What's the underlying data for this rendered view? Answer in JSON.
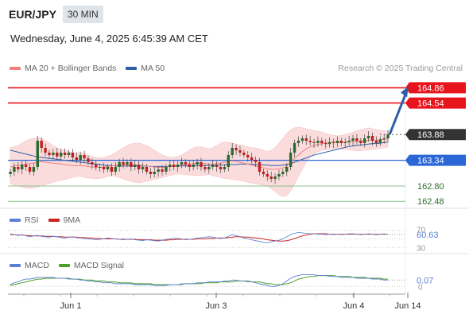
{
  "header": {
    "pair": "EUR/JPY",
    "timeframe": "30 MIN",
    "datetime": "Wednesday, June 4, 2025 6:45:39 AM CET",
    "credit": "Research © 2025 Trading Central"
  },
  "legend": {
    "ma20": "MA 20 + Bollinger Bands",
    "ma50": "MA 50"
  },
  "rsi_legend": {
    "rsi": "RSI",
    "ma9": "9MA"
  },
  "macd_legend": {
    "macd": "MACD",
    "signal": "MACD Signal"
  },
  "colors": {
    "resistance": "#e8141c",
    "support": "#2a66d6",
    "support_minor": "#8bc28b",
    "bollinger": "#fbdcdc",
    "ma20": "#f08080",
    "ma50": "#2d5fa8",
    "bull": "#2d6a2d",
    "bear": "#c02020",
    "rsi": "#5a7fd6",
    "rsi_ma": "#cc2222",
    "macd": "#5a7fd6",
    "macd_signal": "#4aa02a",
    "arrow": "#2d5fa8"
  },
  "chart_data": [
    {
      "type": "candlestick",
      "title": "EUR/JPY",
      "x_labels": [
        "Jun 1",
        "Jun 3",
        "Jun 4",
        "Jun 14"
      ],
      "ylim": [
        162.4,
        165.1
      ],
      "levels": [
        {
          "name": "resistance-2",
          "value": 164.86,
          "label": "164.86",
          "style": "resistance"
        },
        {
          "name": "resistance-1",
          "value": 164.54,
          "label": "164.54",
          "style": "resistance"
        },
        {
          "name": "current-price",
          "value": 163.88,
          "label": "163.88",
          "style": "current"
        },
        {
          "name": "support-1",
          "value": 163.34,
          "label": "163.34",
          "style": "support"
        },
        {
          "name": "support-2",
          "value": 162.8,
          "label": "162.80",
          "style": "minor"
        },
        {
          "name": "support-3",
          "value": 162.48,
          "label": "162.48",
          "style": "minor"
        }
      ],
      "closes": [
        163.1,
        163.2,
        163.15,
        163.25,
        163.2,
        163.1,
        163.2,
        163.75,
        163.6,
        163.5,
        163.45,
        163.5,
        163.42,
        163.5,
        163.45,
        163.5,
        163.4,
        163.35,
        163.45,
        163.38,
        163.3,
        163.25,
        163.2,
        163.2,
        163.15,
        163.2,
        163.1,
        163.2,
        163.3,
        163.25,
        163.3,
        163.2,
        163.25,
        163.15,
        163.2,
        163.1,
        163.05,
        163.1,
        163.15,
        163.1,
        163.2,
        163.25,
        163.2,
        163.25,
        163.3,
        163.25,
        163.2,
        163.25,
        163.3,
        163.2,
        163.15,
        163.2,
        163.25,
        163.2,
        163.15,
        163.2,
        163.45,
        163.6,
        163.55,
        163.5,
        163.45,
        163.4,
        163.35,
        163.3,
        163.1,
        163.05,
        163.0,
        162.95,
        163.0,
        163.05,
        163.1,
        163.2,
        163.5,
        163.7,
        163.75,
        163.8,
        163.75,
        163.72,
        163.7,
        163.75,
        163.7,
        163.68,
        163.72,
        163.7,
        163.75,
        163.7,
        163.72,
        163.75,
        163.8,
        163.75,
        163.7,
        163.8,
        163.85,
        163.75,
        163.7,
        163.78,
        163.8,
        163.88
      ],
      "bollinger_upper": [
        163.6,
        163.62,
        163.65,
        163.7,
        163.75,
        163.78,
        163.8,
        163.82,
        163.8,
        163.75,
        163.7,
        163.65,
        163.6,
        163.58,
        163.55,
        163.52,
        163.5,
        163.5,
        163.5,
        163.48,
        163.45,
        163.42,
        163.4,
        163.4,
        163.4,
        163.42,
        163.45,
        163.5,
        163.55,
        163.6,
        163.65,
        163.68,
        163.7,
        163.7,
        163.68,
        163.65,
        163.6,
        163.55,
        163.5,
        163.45,
        163.42,
        163.4,
        163.4,
        163.42,
        163.45,
        163.5,
        163.55,
        163.6,
        163.62,
        163.62,
        163.6,
        163.58,
        163.6,
        163.65,
        163.7,
        163.72,
        163.72,
        163.7,
        163.68,
        163.66,
        163.65,
        163.62,
        163.6,
        163.6,
        163.58,
        163.55,
        163.52,
        163.55,
        163.6,
        163.7,
        163.8,
        163.9,
        163.98,
        164.02,
        164.03,
        164.02,
        164.0,
        163.98,
        163.96,
        163.95,
        163.93,
        163.9,
        163.88,
        163.86,
        163.85,
        163.86,
        163.88,
        163.9,
        163.93,
        163.96,
        163.98,
        164.0,
        164.02,
        164.0,
        163.98,
        163.97,
        163.96,
        163.95
      ],
      "bollinger_lower": [
        162.85,
        162.82,
        162.8,
        162.78,
        162.76,
        162.75,
        162.76,
        162.78,
        162.8,
        162.83,
        162.85,
        162.88,
        162.9,
        162.92,
        162.94,
        162.96,
        162.98,
        163.0,
        163.0,
        162.98,
        162.97,
        162.96,
        162.95,
        162.96,
        162.98,
        163.0,
        163.02,
        163.0,
        162.98,
        162.95,
        162.92,
        162.9,
        162.88,
        162.87,
        162.88,
        162.9,
        162.92,
        162.94,
        162.96,
        162.98,
        163.0,
        163.02,
        163.04,
        163.05,
        163.05,
        163.04,
        163.03,
        163.02,
        163.02,
        163.02,
        163.03,
        163.04,
        163.02,
        163.0,
        162.98,
        162.96,
        162.95,
        162.94,
        162.93,
        162.92,
        162.9,
        162.88,
        162.86,
        162.85,
        162.83,
        162.82,
        162.8,
        162.75,
        162.68,
        162.62,
        162.58,
        162.6,
        162.7,
        162.85,
        163.0,
        163.15,
        163.3,
        163.4,
        163.48,
        163.52,
        163.55,
        163.56,
        163.57,
        163.58,
        163.58,
        163.58,
        163.57,
        163.56,
        163.55,
        163.54,
        163.54,
        163.55,
        163.56,
        163.57,
        163.58,
        163.59,
        163.6,
        163.62
      ],
      "ma20": [
        163.2,
        163.22,
        163.23,
        163.24,
        163.26,
        163.27,
        163.28,
        163.3,
        163.31,
        163.3,
        163.29,
        163.28,
        163.27,
        163.26,
        163.25,
        163.24,
        163.23,
        163.23,
        163.23,
        163.22,
        163.21,
        163.2,
        163.19,
        163.19,
        163.2,
        163.21,
        163.22,
        163.23,
        163.24,
        163.24,
        163.24,
        163.24,
        163.24,
        163.23,
        163.23,
        163.22,
        163.21,
        163.2,
        163.19,
        163.19,
        163.2,
        163.21,
        163.22,
        163.23,
        163.24,
        163.25,
        163.26,
        163.27,
        163.28,
        163.28,
        163.27,
        163.26,
        163.26,
        163.27,
        163.28,
        163.3,
        163.32,
        163.33,
        163.32,
        163.3,
        163.28,
        163.26,
        163.24,
        163.22,
        163.2,
        163.18,
        163.16,
        163.15,
        163.15,
        163.16,
        163.18,
        163.22,
        163.3,
        163.38,
        163.45,
        163.52,
        163.58,
        163.62,
        163.65,
        163.67,
        163.69,
        163.7,
        163.71,
        163.72,
        163.72,
        163.72,
        163.72,
        163.73,
        163.73,
        163.74,
        163.74,
        163.75,
        163.76,
        163.76,
        163.76,
        163.77,
        163.78,
        163.79
      ],
      "ma50": [
        163.55,
        163.53,
        163.51,
        163.49,
        163.47,
        163.45,
        163.43,
        163.41,
        163.4,
        163.39,
        163.38,
        163.37,
        163.36,
        163.35,
        163.34,
        163.33,
        163.32,
        163.31,
        163.3,
        163.29,
        163.28,
        163.27,
        163.26,
        163.25,
        163.24,
        163.23,
        163.23,
        163.22,
        163.22,
        163.22,
        163.22,
        163.22,
        163.22,
        163.22,
        163.22,
        163.22,
        163.21,
        163.21,
        163.21,
        163.21,
        163.21,
        163.21,
        163.21,
        163.22,
        163.22,
        163.22,
        163.22,
        163.22,
        163.23,
        163.23,
        163.23,
        163.23,
        163.23,
        163.24,
        163.24,
        163.24,
        163.25,
        163.25,
        163.25,
        163.26,
        163.26,
        163.26,
        163.26,
        163.25,
        163.25,
        163.24,
        163.24,
        163.23,
        163.23,
        163.23,
        163.24,
        163.25,
        163.27,
        163.3,
        163.33,
        163.36,
        163.39,
        163.42,
        163.45,
        163.47,
        163.49,
        163.51,
        163.53,
        163.55,
        163.57,
        163.59,
        163.61,
        163.63,
        163.64,
        163.65,
        163.66,
        163.67,
        163.68,
        163.69,
        163.69,
        163.7,
        163.71,
        163.72
      ]
    },
    {
      "type": "line",
      "title": "RSI",
      "ylim": [
        25,
        75
      ],
      "tick_labels": [
        "70",
        "30"
      ],
      "current_value_label": "60.63",
      "series": [
        {
          "name": "RSI",
          "values": [
            62,
            60,
            58,
            60,
            57,
            55,
            57,
            58,
            56,
            55,
            54,
            56,
            55,
            53,
            52,
            54,
            55,
            53,
            52,
            51,
            50,
            49,
            48,
            49,
            50,
            52,
            51,
            50,
            49,
            48,
            49,
            50,
            48,
            47,
            46,
            48,
            47,
            46,
            45,
            47,
            49,
            50,
            52,
            51,
            50,
            48,
            49,
            50,
            52,
            53,
            54,
            55,
            54,
            52,
            51,
            52,
            56,
            60,
            58,
            55,
            52,
            50,
            48,
            46,
            44,
            42,
            41,
            43,
            45,
            47,
            50,
            55,
            60,
            63,
            65,
            64,
            63,
            62,
            62,
            61,
            61,
            60,
            61,
            60,
            61,
            60,
            61,
            62,
            62,
            61,
            60,
            61,
            62,
            61,
            60,
            61,
            62,
            60.63
          ]
        },
        {
          "name": "9MA",
          "values": [
            60,
            60,
            59,
            59,
            58,
            58,
            57,
            57,
            57,
            56,
            56,
            56,
            55,
            55,
            54,
            54,
            54,
            54,
            53,
            53,
            52,
            52,
            51,
            51,
            50,
            50,
            50,
            50,
            49,
            49,
            49,
            49,
            49,
            48,
            48,
            48,
            48,
            47,
            47,
            47,
            47,
            48,
            48,
            49,
            49,
            49,
            49,
            49,
            50,
            50,
            50,
            51,
            51,
            52,
            52,
            52,
            53,
            54,
            55,
            55,
            54,
            54,
            53,
            52,
            51,
            50,
            48,
            47,
            46,
            45,
            45,
            46,
            48,
            51,
            54,
            57,
            59,
            61,
            62,
            62,
            62,
            62,
            61,
            61,
            61,
            61,
            61,
            61,
            61,
            61,
            61,
            61,
            61,
            61,
            61,
            61,
            61,
            61
          ]
        }
      ]
    },
    {
      "type": "line",
      "title": "MACD",
      "ylim": [
        -0.05,
        0.16
      ],
      "tick_labels": [
        "0"
      ],
      "current_value_label": "0.07",
      "series": [
        {
          "name": "MACD",
          "values": [
            0.02,
            0.04,
            0.05,
            0.07,
            0.08,
            0.08,
            0.09,
            0.1,
            0.1,
            0.1,
            0.1,
            0.1,
            0.09,
            0.09,
            0.09,
            0.08,
            0.08,
            0.08,
            0.07,
            0.07,
            0.06,
            0.06,
            0.05,
            0.05,
            0.04,
            0.04,
            0.04,
            0.03,
            0.03,
            0.03,
            0.03,
            0.03,
            0.02,
            0.02,
            0.02,
            0.02,
            0.02,
            0.01,
            0.01,
            0.01,
            0.01,
            0.02,
            0.02,
            0.02,
            0.03,
            0.03,
            0.03,
            0.03,
            0.04,
            0.04,
            0.04,
            0.05,
            0.05,
            0.05,
            0.05,
            0.06,
            0.06,
            0.07,
            0.07,
            0.06,
            0.06,
            0.05,
            0.05,
            0.04,
            0.03,
            0.02,
            0.01,
            0.0,
            0.0,
            0.01,
            0.03,
            0.06,
            0.09,
            0.11,
            0.12,
            0.13,
            0.13,
            0.13,
            0.13,
            0.12,
            0.12,
            0.12,
            0.11,
            0.11,
            0.11,
            0.1,
            0.1,
            0.1,
            0.1,
            0.09,
            0.09,
            0.09,
            0.09,
            0.08,
            0.08,
            0.08,
            0.07,
            0.07
          ]
        },
        {
          "name": "MACD Signal",
          "values": [
            0.01,
            0.02,
            0.03,
            0.04,
            0.05,
            0.06,
            0.07,
            0.08,
            0.08,
            0.09,
            0.09,
            0.09,
            0.09,
            0.09,
            0.09,
            0.09,
            0.08,
            0.08,
            0.08,
            0.07,
            0.07,
            0.07,
            0.06,
            0.06,
            0.06,
            0.05,
            0.05,
            0.05,
            0.04,
            0.04,
            0.04,
            0.04,
            0.03,
            0.03,
            0.03,
            0.03,
            0.03,
            0.02,
            0.02,
            0.02,
            0.02,
            0.02,
            0.02,
            0.02,
            0.02,
            0.03,
            0.03,
            0.03,
            0.03,
            0.03,
            0.04,
            0.04,
            0.04,
            0.04,
            0.05,
            0.05,
            0.05,
            0.05,
            0.06,
            0.06,
            0.06,
            0.06,
            0.05,
            0.05,
            0.05,
            0.04,
            0.03,
            0.03,
            0.02,
            0.02,
            0.02,
            0.03,
            0.04,
            0.06,
            0.08,
            0.09,
            0.1,
            0.11,
            0.11,
            0.12,
            0.12,
            0.12,
            0.12,
            0.12,
            0.11,
            0.11,
            0.11,
            0.11,
            0.1,
            0.1,
            0.1,
            0.1,
            0.09,
            0.09,
            0.09,
            0.09,
            0.08,
            0.08
          ]
        }
      ]
    }
  ]
}
